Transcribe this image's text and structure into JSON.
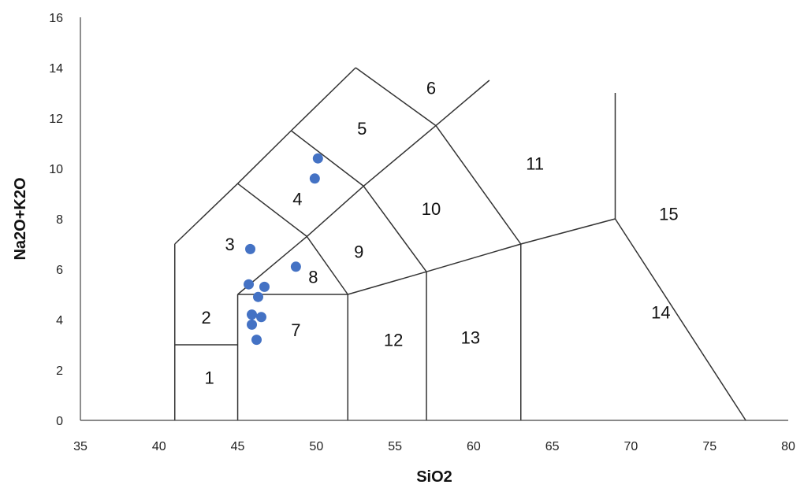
{
  "chart_data": {
    "type": "scatter",
    "title": "",
    "xlabel": "SiO2",
    "ylabel": "Na2O+K2O",
    "xlim": [
      35,
      80
    ],
    "ylim": [
      0,
      16
    ],
    "xticks": [
      "35",
      "40",
      "45",
      "50",
      "55",
      "60",
      "65",
      "70",
      "75",
      "80"
    ],
    "yticks": [
      "0",
      "2",
      "4",
      "6",
      "8",
      "10",
      "12",
      "14",
      "16"
    ],
    "grid": false,
    "legend": "none",
    "point_color": "#4472c4",
    "points": [
      {
        "x": 50.1,
        "y": 10.4
      },
      {
        "x": 49.9,
        "y": 9.6
      },
      {
        "x": 45.8,
        "y": 6.8
      },
      {
        "x": 48.7,
        "y": 6.1
      },
      {
        "x": 45.7,
        "y": 5.4
      },
      {
        "x": 46.7,
        "y": 5.3
      },
      {
        "x": 46.3,
        "y": 4.9
      },
      {
        "x": 45.9,
        "y": 4.2
      },
      {
        "x": 46.5,
        "y": 4.1
      },
      {
        "x": 45.9,
        "y": 3.8
      },
      {
        "x": 46.2,
        "y": 3.2
      }
    ],
    "field_boundaries": [
      [
        [
          41,
          0
        ],
        [
          41,
          7
        ]
      ],
      [
        [
          41,
          7
        ],
        [
          45,
          9.4
        ]
      ],
      [
        [
          45,
          9.4
        ],
        [
          48.4,
          11.5
        ]
      ],
      [
        [
          48.4,
          11.5
        ],
        [
          52.5,
          14
        ]
      ],
      [
        [
          52.5,
          14
        ],
        [
          57.6,
          11.7
        ]
      ],
      [
        [
          57.6,
          11.7
        ],
        [
          61,
          13.5
        ]
      ],
      [
        [
          41,
          3
        ],
        [
          45,
          3
        ]
      ],
      [
        [
          45,
          0
        ],
        [
          45,
          5
        ]
      ],
      [
        [
          45,
          5
        ],
        [
          49.4,
          7.3
        ]
      ],
      [
        [
          49.4,
          7.3
        ],
        [
          53,
          9.3
        ]
      ],
      [
        [
          53,
          9.3
        ],
        [
          57.6,
          11.7
        ]
      ],
      [
        [
          45,
          5
        ],
        [
          52,
          5
        ]
      ],
      [
        [
          52,
          0
        ],
        [
          52,
          5
        ]
      ],
      [
        [
          45,
          9.4
        ],
        [
          49.4,
          7.3
        ]
      ],
      [
        [
          48.4,
          11.5
        ],
        [
          53,
          9.3
        ]
      ],
      [
        [
          49.4,
          7.3
        ],
        [
          52,
          5
        ]
      ],
      [
        [
          53,
          9.3
        ],
        [
          57,
          5.9
        ]
      ],
      [
        [
          57.6,
          11.7
        ],
        [
          63,
          7
        ]
      ],
      [
        [
          52,
          5
        ],
        [
          57,
          5.9
        ]
      ],
      [
        [
          57,
          5.9
        ],
        [
          63,
          7
        ]
      ],
      [
        [
          63,
          7
        ],
        [
          69,
          8
        ]
      ],
      [
        [
          57,
          0
        ],
        [
          57,
          5.9
        ]
      ],
      [
        [
          63,
          0
        ],
        [
          63,
          7
        ]
      ],
      [
        [
          69,
          8
        ],
        [
          69,
          13
        ]
      ],
      [
        [
          69,
          8
        ],
        [
          77.3,
          0
        ]
      ]
    ],
    "fields": [
      {
        "label": "1",
        "x": 43.2,
        "y": 1.7
      },
      {
        "label": "2",
        "x": 43.0,
        "y": 4.1
      },
      {
        "label": "3",
        "x": 44.5,
        "y": 7.0
      },
      {
        "label": "4",
        "x": 48.8,
        "y": 8.8
      },
      {
        "label": "5",
        "x": 52.9,
        "y": 11.6
      },
      {
        "label": "6",
        "x": 57.3,
        "y": 13.2
      },
      {
        "label": "7",
        "x": 48.7,
        "y": 3.6
      },
      {
        "label": "8",
        "x": 49.8,
        "y": 5.7
      },
      {
        "label": "9",
        "x": 52.7,
        "y": 6.7
      },
      {
        "label": "10",
        "x": 57.3,
        "y": 8.4
      },
      {
        "label": "11",
        "x": 63.9,
        "y": 10.2
      },
      {
        "label": "12",
        "x": 54.9,
        "y": 3.2
      },
      {
        "label": "13",
        "x": 59.8,
        "y": 3.3
      },
      {
        "label": "14",
        "x": 71.9,
        "y": 4.3
      },
      {
        "label": "15",
        "x": 72.4,
        "y": 8.2
      }
    ]
  }
}
